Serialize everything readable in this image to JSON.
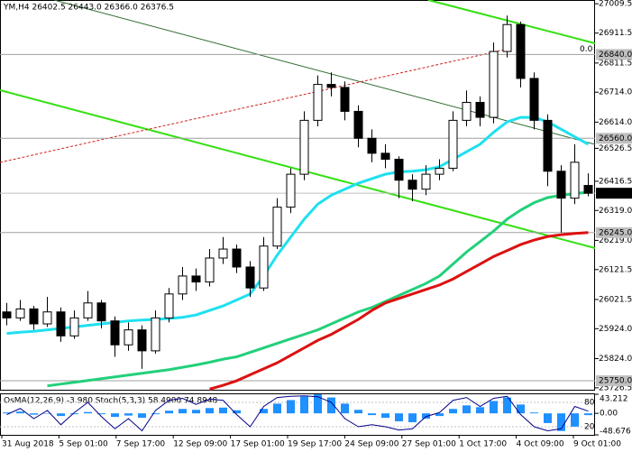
{
  "chart_data": {
    "type": "candlestick",
    "title": "YM,H4  26402.5 26443.0 26366.0 26376.5",
    "ylim": [
      25720,
      27022
    ],
    "yticks": [
      27009.5,
      26911.5,
      26811.5,
      {
        "value": 26714,
        "label": "26714.0"
      },
      {
        "value": 26614,
        "label": "26614.0"
      },
      26526.5,
      26416.5,
      {
        "value": 26319,
        "label": "26319.0"
      },
      {
        "value": 26219,
        "label": "26219.0"
      },
      26121.5,
      26021.5,
      {
        "value": 25924,
        "label": "25924.0"
      },
      {
        "value": 25824,
        "label": "25824.0"
      },
      25726.5
    ],
    "x_labels": [
      "31 Aug 2018",
      "5 Sep 01:00",
      "7 Sep 17:00",
      "12 Sep 09:00",
      "17 Sep 01:00",
      "19 Sep 17:00",
      "24 Sep 09:00",
      "27 Sep 01:00",
      "1 Oct 17:00",
      "4 Oct 09:00",
      "9 Oct 01:00"
    ],
    "open": [
      25980,
      25960,
      25990,
      25940,
      25980,
      25900,
      25960,
      26010,
      25950,
      25870,
      25920,
      25850,
      25960,
      26040,
      26100,
      26080,
      26160,
      26190,
      26130,
      26060,
      26200,
      26330,
      26440,
      26620,
      26740,
      26730,
      26650,
      26560,
      26510,
      26490,
      26420,
      26390,
      26440,
      26460,
      26620,
      26680,
      26630,
      26850,
      26940,
      26760,
      26620,
      26450,
      26360,
      26402.5
    ],
    "high": [
      26010,
      26020,
      26000,
      26030,
      25995,
      25985,
      26050,
      26020,
      25965,
      25945,
      25935,
      25985,
      26060,
      26130,
      26125,
      26190,
      26230,
      26205,
      26150,
      26230,
      26360,
      26460,
      26650,
      26770,
      26780,
      26750,
      26670,
      26590,
      26540,
      26500,
      26440,
      26470,
      26490,
      26650,
      26720,
      26700,
      26880,
      26970,
      26950,
      26780,
      26640,
      26470,
      26540,
      26443
    ],
    "low": [
      25935,
      25950,
      25920,
      25930,
      25880,
      25890,
      25950,
      25925,
      25830,
      25850,
      25790,
      25840,
      25945,
      26020,
      26050,
      26065,
      26140,
      26110,
      26030,
      26050,
      26190,
      26310,
      26420,
      26600,
      26700,
      26620,
      26530,
      26480,
      26460,
      26360,
      26350,
      26370,
      26420,
      26450,
      26600,
      26600,
      26610,
      26830,
      26730,
      26590,
      26400,
      26245,
      26340,
      26366
    ],
    "close": [
      25960,
      25990,
      25940,
      25980,
      25900,
      25960,
      26010,
      25950,
      25870,
      25920,
      25850,
      25960,
      26040,
      26100,
      26080,
      26160,
      26190,
      26130,
      26060,
      26200,
      26330,
      26440,
      26620,
      26740,
      26730,
      26650,
      26560,
      26510,
      26490,
      26420,
      26390,
      26440,
      26460,
      26620,
      26680,
      26630,
      26850,
      26940,
      26760,
      26620,
      26450,
      26360,
      26480,
      26376.5
    ],
    "moving_averages": [
      {
        "color": "#1ee0f0",
        "values": [
          25908,
          25912,
          25915,
          25920,
          25925,
          25930,
          25935,
          25940,
          25945,
          25950,
          25953,
          25955,
          25958,
          25962,
          25970,
          25985,
          26000,
          26020,
          26040,
          26100,
          26170,
          26230,
          26290,
          26340,
          26370,
          26390,
          26410,
          26425,
          26440,
          26448,
          26450,
          26455,
          26465,
          26490,
          26515,
          26540,
          26580,
          26615,
          26630,
          26630,
          26615,
          26590,
          26565,
          26540
        ]
      },
      {
        "color": "#22d07a",
        "values": [
          null,
          null,
          null,
          25733,
          25739,
          25745,
          25751,
          25757,
          25763,
          25769,
          25775,
          25781,
          25787,
          25795,
          25803,
          25812,
          25822,
          25830,
          25845,
          25860,
          25875,
          25890,
          25905,
          25920,
          25940,
          25960,
          25980,
          25995,
          26015,
          26035,
          26055,
          26075,
          26100,
          26140,
          26180,
          26215,
          26250,
          26290,
          26320,
          26345,
          26362,
          26370,
          26375,
          26380
        ]
      },
      {
        "color": "#dd1111",
        "values": [
          null,
          null,
          null,
          null,
          null,
          null,
          null,
          null,
          null,
          null,
          null,
          null,
          null,
          null,
          null,
          25722,
          25735,
          25750,
          25770,
          25790,
          25810,
          25835,
          25860,
          25885,
          25905,
          25930,
          25955,
          25985,
          26010,
          26025,
          26040,
          26055,
          26070,
          26090,
          26115,
          26140,
          26165,
          26185,
          26205,
          26220,
          26232,
          26238,
          26242,
          26245
        ]
      }
    ],
    "levels": [
      {
        "value": 26840,
        "label": "26840.0"
      },
      {
        "value": 26560,
        "label": "26560.0"
      },
      {
        "value": 26245,
        "label": "26245.0"
      },
      {
        "value": 25750,
        "label": "25750.0"
      }
    ],
    "current_price": 26376.5,
    "fib_label": "0.0",
    "indicator": {
      "title": "OsMA(12,26,9) -3.980  Stoch(5,3,3) 58.4900 74.8948",
      "osma_color": "#1e90ff",
      "stoch_color": "#00008b",
      "ylim": [
        -48.676,
        43.212
      ],
      "yticks": [
        43.212,
        {
          "value": 0,
          "label": "0.00"
        },
        -48.676
      ],
      "stoch_ylim": [
        0,
        100
      ],
      "stoch_yticks": [
        80,
        20
      ],
      "osma": [
        2,
        4,
        -3,
        -1,
        -6,
        -2,
        3,
        -2,
        -8,
        -5,
        -10,
        -2,
        6,
        10,
        8,
        12,
        13,
        7,
        0,
        10,
        22,
        30,
        38,
        43,
        36,
        22,
        8,
        -4,
        -10,
        -18,
        -20,
        -12,
        -6,
        10,
        18,
        14,
        28,
        36,
        20,
        2,
        -22,
        -40,
        -30,
        -3.98
      ],
      "stoch": [
        50,
        65,
        40,
        60,
        25,
        55,
        80,
        45,
        15,
        40,
        10,
        60,
        85,
        90,
        75,
        88,
        85,
        50,
        20,
        70,
        92,
        95,
        96,
        94,
        80,
        40,
        20,
        25,
        20,
        12,
        15,
        45,
        55,
        85,
        92,
        70,
        90,
        95,
        50,
        20,
        10,
        15,
        70,
        58.49
      ]
    }
  }
}
